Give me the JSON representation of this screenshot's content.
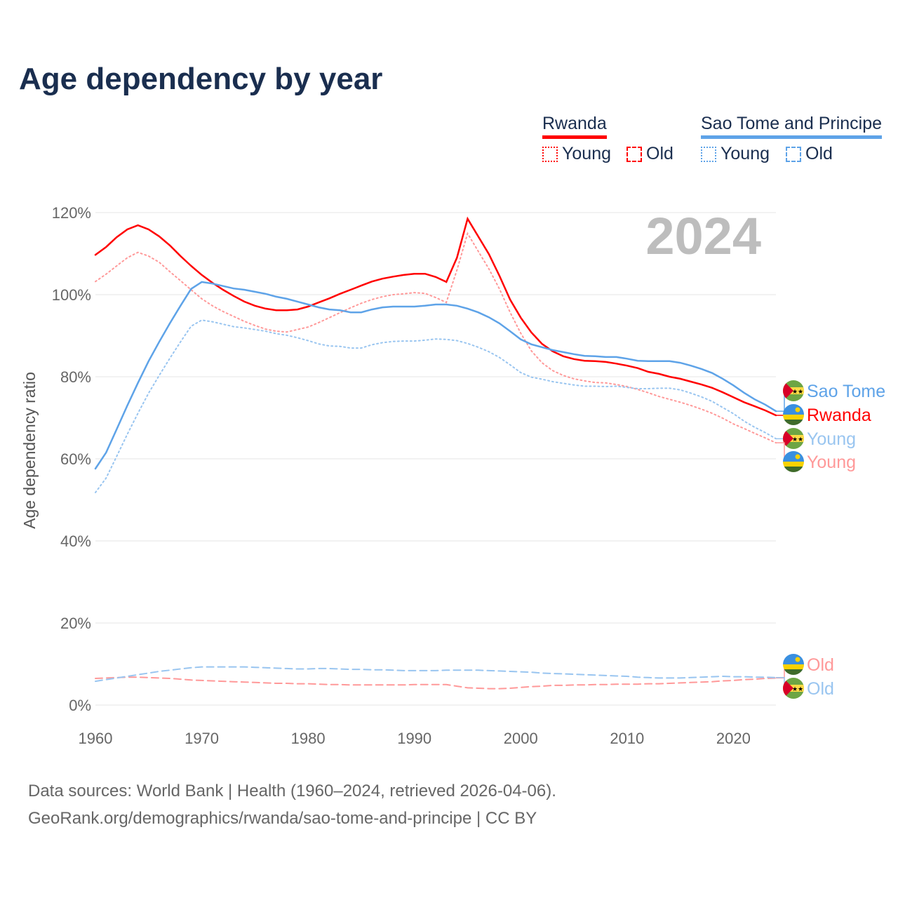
{
  "chart_data": {
    "type": "line",
    "title": "Age dependency by year",
    "ylabel": "Age dependency ratio",
    "xlabel": "",
    "xlim": [
      1960,
      2024
    ],
    "ylim": [
      0,
      120
    ],
    "x_ticks": [
      "1960",
      "1970",
      "1980",
      "1990",
      "2000",
      "2010",
      "2020"
    ],
    "y_ticks": [
      "0%",
      "20%",
      "40%",
      "60%",
      "80%",
      "100%",
      "120%"
    ],
    "grid": true,
    "year_label": "2024",
    "legend": {
      "placement": "top-right",
      "countries": [
        {
          "name": "Rwanda",
          "color": "#ff0000",
          "items": [
            "Young",
            "Old"
          ]
        },
        {
          "name": "Sao Tome and Principe",
          "color": "#5ea3e8",
          "items": [
            "Young",
            "Old"
          ]
        }
      ]
    },
    "x_start": 1960,
    "series": [
      {
        "name": "Rwanda",
        "country": "Rwanda",
        "kind": "total",
        "color": "#ff0000",
        "end_label": "Rwanda",
        "values": [
          109.7,
          111.6,
          114.0,
          115.9,
          116.9,
          115.9,
          114.2,
          112.0,
          109.4,
          107.0,
          104.8,
          102.9,
          101.2,
          99.7,
          98.3,
          97.3,
          96.6,
          96.2,
          96.2,
          96.4,
          97.1,
          98.1,
          99.1,
          100.2,
          101.2,
          102.2,
          103.2,
          103.9,
          104.4,
          104.8,
          105.1,
          105.1,
          104.3,
          103.1,
          109.0,
          118.5,
          114.2,
          109.9,
          104.6,
          98.8,
          94.4,
          90.8,
          88.0,
          86.2,
          85.0,
          84.3,
          83.9,
          83.8,
          83.6,
          83.2,
          82.7,
          82.1,
          81.2,
          80.7,
          80.0,
          79.5,
          78.8,
          78.1,
          77.3,
          76.2,
          75.0,
          73.8,
          72.8,
          71.8,
          70.6
        ]
      },
      {
        "name": "Rwanda Young",
        "country": "Rwanda",
        "kind": "young",
        "color": "#ff9999",
        "end_label": "Young",
        "values": [
          103.2,
          105.0,
          107.0,
          109.0,
          110.3,
          109.4,
          107.9,
          105.6,
          103.4,
          101.2,
          99.0,
          97.3,
          95.9,
          94.7,
          93.5,
          92.5,
          91.6,
          91.1,
          90.9,
          91.5,
          92.1,
          93.2,
          94.4,
          95.6,
          96.8,
          97.9,
          98.8,
          99.5,
          100.0,
          100.2,
          100.5,
          100.3,
          99.3,
          98.1,
          106.0,
          114.9,
          110.6,
          106.3,
          101.4,
          95.7,
          90.6,
          86.3,
          83.4,
          81.5,
          80.3,
          79.5,
          79.0,
          78.6,
          78.5,
          78.1,
          77.6,
          76.9,
          76.1,
          75.2,
          74.5,
          73.8,
          73.0,
          72.1,
          71.1,
          69.9,
          68.5,
          67.4,
          66.2,
          65.1,
          63.9
        ]
      },
      {
        "name": "Rwanda Old",
        "country": "Rwanda",
        "kind": "old",
        "color": "#ff9999",
        "end_label": "Old",
        "values": [
          6.5,
          6.6,
          6.7,
          6.8,
          6.8,
          6.7,
          6.6,
          6.5,
          6.3,
          6.1,
          6.0,
          5.9,
          5.8,
          5.7,
          5.6,
          5.5,
          5.4,
          5.3,
          5.3,
          5.2,
          5.2,
          5.1,
          5.0,
          5.0,
          4.9,
          4.9,
          4.9,
          4.9,
          4.9,
          4.9,
          5.0,
          5.0,
          5.0,
          5.0,
          4.6,
          4.2,
          4.1,
          4.0,
          4.0,
          4.1,
          4.3,
          4.5,
          4.6,
          4.8,
          4.8,
          4.9,
          4.9,
          5.0,
          5.0,
          5.1,
          5.1,
          5.1,
          5.2,
          5.2,
          5.3,
          5.4,
          5.5,
          5.6,
          5.7,
          5.9,
          6.0,
          6.2,
          6.3,
          6.5,
          6.6
        ]
      },
      {
        "name": "Sao Tome",
        "country": "Sao Tome and Principe",
        "kind": "total",
        "color": "#5ea3e8",
        "end_label": "Sao Tome",
        "values": [
          57.6,
          61.5,
          67.2,
          73.0,
          78.5,
          83.8,
          88.5,
          93.0,
          97.3,
          101.4,
          103.1,
          102.7,
          102.1,
          101.5,
          101.2,
          100.7,
          100.2,
          99.5,
          99.0,
          98.3,
          97.6,
          96.9,
          96.4,
          96.2,
          95.7,
          95.7,
          96.4,
          96.9,
          97.1,
          97.1,
          97.1,
          97.3,
          97.6,
          97.6,
          97.3,
          96.6,
          95.7,
          94.5,
          93.0,
          91.1,
          89.1,
          87.9,
          87.2,
          86.5,
          86.0,
          85.5,
          85.1,
          85.0,
          84.8,
          84.8,
          84.4,
          83.9,
          83.8,
          83.8,
          83.8,
          83.4,
          82.7,
          81.9,
          80.9,
          79.5,
          77.9,
          76.1,
          74.5,
          73.2,
          71.6
        ]
      },
      {
        "name": "Sao Tome Young",
        "country": "Sao Tome and Principe",
        "kind": "young",
        "color": "#99c5f0",
        "end_label": "Young",
        "values": [
          51.8,
          55.3,
          60.6,
          66.0,
          71.1,
          76.0,
          80.3,
          84.5,
          88.5,
          92.3,
          93.8,
          93.4,
          92.8,
          92.2,
          91.9,
          91.5,
          91.1,
          90.5,
          90.1,
          89.5,
          88.8,
          88.0,
          87.5,
          87.4,
          87.0,
          87.0,
          87.8,
          88.3,
          88.6,
          88.7,
          88.7,
          88.9,
          89.2,
          89.1,
          88.8,
          88.1,
          87.2,
          86.1,
          84.7,
          82.9,
          81.0,
          79.9,
          79.4,
          78.8,
          78.4,
          78.0,
          77.7,
          77.7,
          77.6,
          77.7,
          77.4,
          77.1,
          77.1,
          77.2,
          77.2,
          76.8,
          76.0,
          75.1,
          74.0,
          72.5,
          71.0,
          69.2,
          67.7,
          66.4,
          64.9
        ]
      },
      {
        "name": "Sao Tome Old",
        "country": "Sao Tome and Principe",
        "kind": "old",
        "color": "#99c5f0",
        "end_label": "Old",
        "values": [
          5.8,
          6.2,
          6.6,
          7.0,
          7.4,
          7.8,
          8.2,
          8.5,
          8.8,
          9.1,
          9.3,
          9.3,
          9.3,
          9.3,
          9.3,
          9.2,
          9.1,
          9.0,
          8.9,
          8.8,
          8.8,
          8.9,
          8.9,
          8.8,
          8.7,
          8.7,
          8.6,
          8.6,
          8.5,
          8.4,
          8.4,
          8.4,
          8.4,
          8.5,
          8.5,
          8.5,
          8.5,
          8.4,
          8.3,
          8.2,
          8.1,
          8.0,
          7.8,
          7.7,
          7.6,
          7.5,
          7.4,
          7.3,
          7.2,
          7.1,
          7.0,
          6.8,
          6.7,
          6.6,
          6.6,
          6.6,
          6.7,
          6.8,
          6.9,
          7.0,
          6.9,
          6.9,
          6.8,
          6.8,
          6.7
        ]
      }
    ]
  },
  "footer": {
    "line1": "Data sources: World Bank | Health (1960–2024, retrieved 2026-04-06).",
    "line2": "GeoRank.org/demographics/rwanda/sao-tome-and-principe | CC BY"
  }
}
